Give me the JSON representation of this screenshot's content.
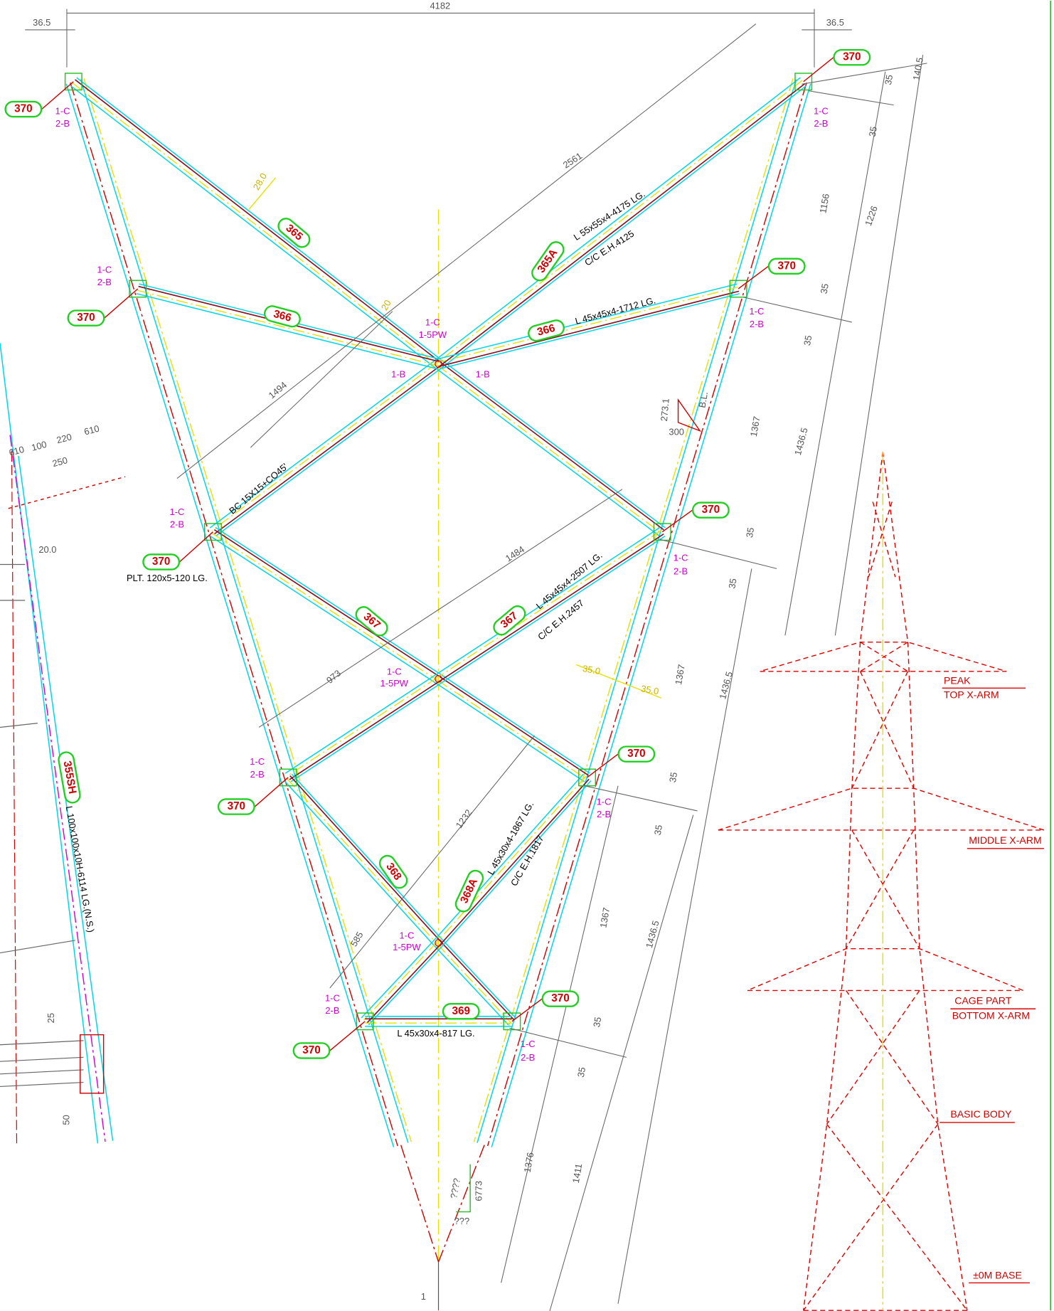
{
  "dimensions": [
    "36.5",
    "4182",
    "36.5",
    "140.5",
    "35",
    "35",
    "1156",
    "1226",
    "35",
    "35",
    "2561",
    "28.0",
    "20",
    "1494",
    "273.1",
    "300",
    "B.L.",
    "1367",
    "1436.5",
    "610",
    "100",
    "220",
    "610",
    "250",
    "20.0",
    "1484",
    "35",
    "35",
    "973",
    "35.0",
    "35.0",
    "1367",
    "1436.5",
    "1232",
    "35",
    "35",
    "585",
    "1367",
    "1436.5",
    "25",
    "50",
    "35",
    "35",
    "1376",
    "1411",
    "????",
    "6773",
    "???",
    "1"
  ],
  "part_marks": [
    "370",
    "370",
    "370",
    "370",
    "370",
    "370",
    "370",
    "370",
    "370",
    "370",
    "365",
    "365A",
    "366",
    "366",
    "367",
    "367",
    "368",
    "368A",
    "369",
    "355SH"
  ],
  "member_notes": [
    "L 55x55x4-4175 LG.",
    "C/C E.H.4125",
    "L 45x45x4-1712 LG.",
    "BC 15X15+CO45'",
    "PLT. 120x5-120 LG.",
    "L 45x45x4-2507 LG.",
    "C/C E.H.2457",
    "L 45x30x4-1867 LG.",
    "C/C E.H.1817",
    "L 45x30x4-817 LG.",
    "L 100x100x10H-6114 LG.(N.S.)"
  ],
  "bolt_notes": [
    "1-C",
    "2-B",
    "1-C",
    "2-B",
    "1-C",
    "2-B",
    "1-C",
    "2-B",
    "1-C",
    "2-B",
    "1-C",
    "2-B",
    "1-C",
    "2-B",
    "1-C",
    "2-B",
    "1-C",
    "2-B",
    "1-C",
    "2-B",
    "1-C",
    "1-5PW",
    "1-C",
    "1-5PW",
    "1-C",
    "1-5PW",
    "1-B",
    "1-B"
  ],
  "tower_labels": [
    "PEAK",
    "TOP X-ARM",
    "MIDDLE X-ARM",
    "CAGE PART",
    "BOTTOM X-ARM",
    "BASIC BODY",
    "±0M BASE"
  ]
}
